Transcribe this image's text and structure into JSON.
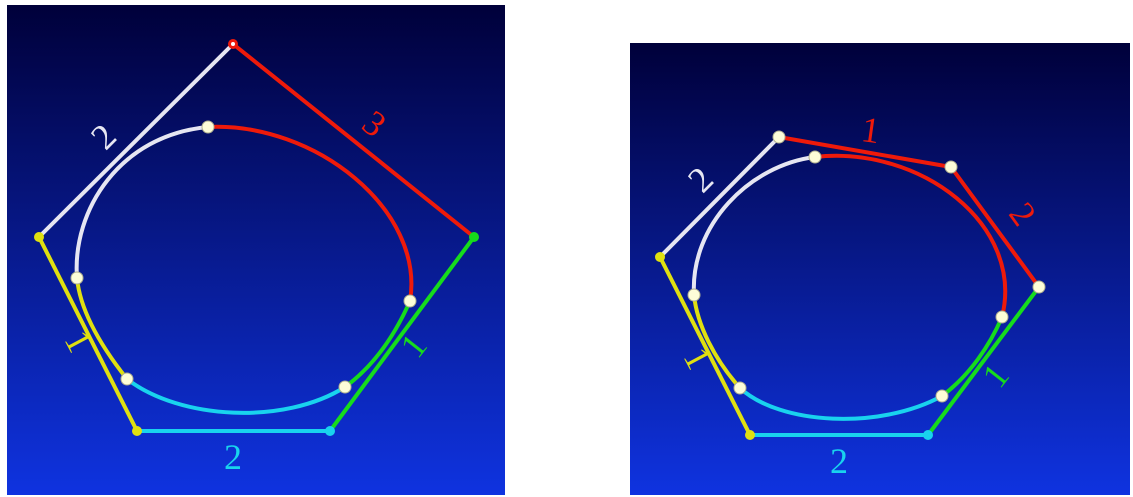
{
  "colors": {
    "bg_top": "#00003a",
    "bg_bottom": "#0f33e0",
    "white": "#e6e6f2",
    "red": "#ee1a0a",
    "yellow": "#e0e010",
    "green": "#16dc1c",
    "cyan": "#19d3ee",
    "point_fill": "#fdfdd8"
  },
  "left_panel": {
    "labels": {
      "white": "2",
      "red": "3",
      "yellow": "1",
      "green": "1",
      "cyan": "2"
    }
  },
  "right_panel": {
    "labels": {
      "white": "2",
      "red_a": "1",
      "red_b": "2",
      "yellow": "1",
      "green": "1",
      "cyan": "2"
    }
  }
}
